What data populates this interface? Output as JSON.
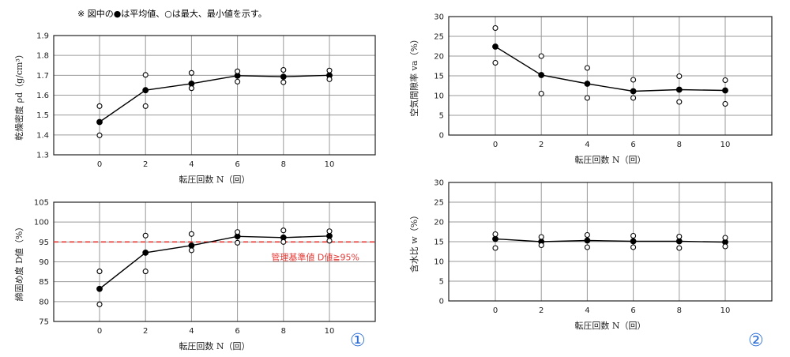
{
  "note": "※ 図中の●は平均値、○は最大、最小値を示す。",
  "panel_markers": [
    "①",
    "②"
  ],
  "colors": {
    "reference": "#e53935",
    "marker": "#2f6fd6",
    "series": "#000000"
  },
  "chart_data": [
    {
      "type": "line",
      "ylabel": "乾燥密度 ρd（g/cm³）",
      "xlabel": "転圧回数 N（回）",
      "x": [
        0,
        2,
        4,
        6,
        8,
        10
      ],
      "ylim": [
        1.3,
        1.9
      ],
      "yticks": [
        1.3,
        1.4,
        1.5,
        1.6,
        1.7,
        1.8,
        1.9
      ],
      "grid": true,
      "series": [
        {
          "role": "mean",
          "values": [
            1.465,
            1.625,
            1.658,
            1.698,
            1.693,
            1.7
          ]
        },
        {
          "role": "max",
          "values": [
            1.545,
            1.702,
            1.712,
            1.72,
            1.727,
            1.724
          ]
        },
        {
          "role": "min",
          "values": [
            1.398,
            1.545,
            1.635,
            1.668,
            1.665,
            1.68
          ]
        }
      ]
    },
    {
      "type": "line",
      "ylabel": "締固め度 D値（%）",
      "xlabel": "転圧回数 N（回）",
      "x": [
        0,
        2,
        4,
        6,
        8,
        10
      ],
      "ylim": [
        75,
        105
      ],
      "yticks": [
        75,
        80,
        85,
        90,
        95,
        100,
        105
      ],
      "grid": true,
      "reference": {
        "value": 95,
        "label": "管理基準値 D値≧95%"
      },
      "series": [
        {
          "role": "mean",
          "values": [
            83.2,
            92.3,
            94.1,
            96.4,
            96.1,
            96.5
          ]
        },
        {
          "role": "max",
          "values": [
            87.6,
            96.6,
            97.0,
            97.5,
            97.9,
            97.7
          ]
        },
        {
          "role": "min",
          "values": [
            79.3,
            87.6,
            92.9,
            94.8,
            95.0,
            95.3
          ]
        }
      ]
    },
    {
      "type": "line",
      "ylabel": "空気間隙率 va（%）",
      "xlabel": "転圧回数 N（回）",
      "x": [
        0,
        2,
        4,
        6,
        8,
        10
      ],
      "ylim": [
        0,
        30
      ],
      "yticks": [
        0,
        5,
        10,
        15,
        20,
        25,
        30
      ],
      "grid": true,
      "series": [
        {
          "role": "mean",
          "values": [
            22.4,
            15.2,
            13.0,
            11.1,
            11.5,
            11.3
          ]
        },
        {
          "role": "max",
          "values": [
            27.1,
            20.0,
            17.0,
            14.0,
            14.9,
            13.9
          ]
        },
        {
          "role": "min",
          "values": [
            18.3,
            10.5,
            9.4,
            9.4,
            8.4,
            7.9
          ]
        }
      ]
    },
    {
      "type": "line",
      "ylabel": "含水比 w（%）",
      "xlabel": "転圧回数 N（回）",
      "x": [
        0,
        2,
        4,
        6,
        8,
        10
      ],
      "ylim": [
        0,
        30
      ],
      "yticks": [
        0,
        5,
        10,
        15,
        20,
        25,
        30
      ],
      "grid": true,
      "series": [
        {
          "role": "mean",
          "values": [
            15.7,
            15.0,
            15.3,
            15.1,
            15.1,
            14.9
          ]
        },
        {
          "role": "max",
          "values": [
            16.9,
            16.2,
            16.7,
            16.5,
            16.3,
            16.0
          ]
        },
        {
          "role": "min",
          "values": [
            13.4,
            14.1,
            13.6,
            13.6,
            13.4,
            13.8
          ]
        }
      ]
    }
  ]
}
